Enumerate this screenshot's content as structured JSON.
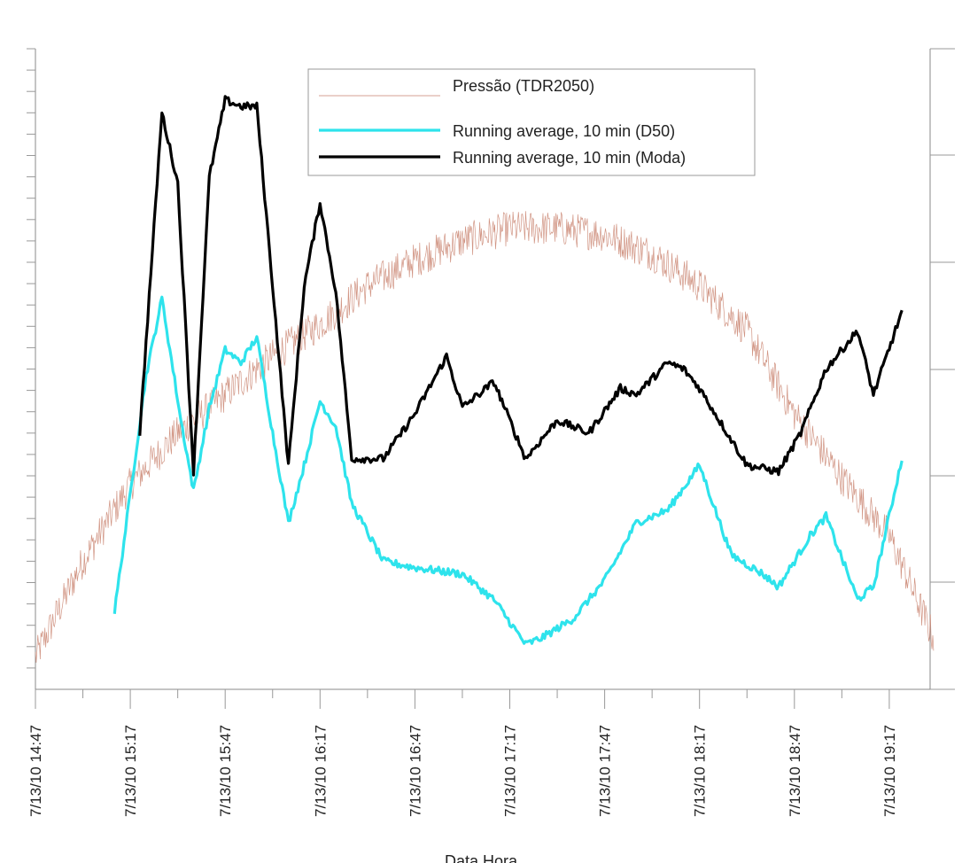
{
  "chart_data": {
    "type": "line",
    "xlabel": "Data Hora",
    "xlim": [
      "7/13/10 14:47",
      "7/13/10 19:31"
    ],
    "x_ticks": [
      "7/13/10 14:47",
      "7/13/10 15:17",
      "7/13/10 15:47",
      "7/13/10 16:17",
      "7/13/10 16:47",
      "7/13/10 17:17",
      "7/13/10 17:47",
      "7/13/10 18:17",
      "7/13/10 18:47",
      "7/13/10 19:17"
    ],
    "left_axis_labels": "not visible (cropped)",
    "right_axis_labels": "not visible (cropped)",
    "grid": false,
    "legend_position": "top-center",
    "series": [
      {
        "name": "Pressão (TDR2050)",
        "color": "#c9826f",
        "style": "noisy thin line",
        "x": [
          "14:47",
          "15:02",
          "15:17",
          "15:32",
          "15:47",
          "16:02",
          "16:17",
          "16:32",
          "16:47",
          "17:02",
          "17:17",
          "17:32",
          "17:47",
          "18:02",
          "18:17",
          "18:32",
          "18:47",
          "19:02",
          "19:17",
          "19:31"
        ],
        "values": [
          0.05,
          0.2,
          0.32,
          0.4,
          0.46,
          0.52,
          0.57,
          0.63,
          0.67,
          0.7,
          0.72,
          0.72,
          0.71,
          0.68,
          0.63,
          0.56,
          0.43,
          0.33,
          0.24,
          0.08
        ]
      },
      {
        "name": "Running average, 10 min (D50)",
        "color": "#2ee3ec",
        "x": [
          "15:12",
          "15:22",
          "15:27",
          "15:33",
          "15:37",
          "15:42",
          "15:47",
          "15:52",
          "15:57",
          "16:02",
          "16:07",
          "16:12",
          "16:17",
          "16:22",
          "16:27",
          "16:37",
          "16:47",
          "17:02",
          "17:12",
          "17:22",
          "17:27",
          "17:37",
          "17:47",
          "17:57",
          "18:07",
          "18:17",
          "18:27",
          "18:37",
          "18:42",
          "18:52",
          "18:57",
          "19:07",
          "19:12",
          "19:21"
        ],
        "values": [
          0.12,
          0.49,
          0.61,
          0.42,
          0.31,
          0.44,
          0.53,
          0.51,
          0.55,
          0.4,
          0.26,
          0.35,
          0.45,
          0.41,
          0.29,
          0.2,
          0.19,
          0.18,
          0.14,
          0.07,
          0.08,
          0.11,
          0.17,
          0.26,
          0.28,
          0.35,
          0.21,
          0.18,
          0.16,
          0.24,
          0.27,
          0.14,
          0.16,
          0.36
        ]
      },
      {
        "name": "Running average, 10 min (Moda)",
        "color": "#000000",
        "x": [
          "15:20",
          "15:27",
          "15:32",
          "15:37",
          "15:42",
          "15:47",
          "15:52",
          "15:57",
          "16:02",
          "16:07",
          "16:12",
          "16:17",
          "16:22",
          "16:27",
          "16:37",
          "16:47",
          "16:57",
          "17:02",
          "17:12",
          "17:22",
          "17:32",
          "17:42",
          "17:52",
          "17:57",
          "18:07",
          "18:12",
          "18:17",
          "18:32",
          "18:42",
          "18:49",
          "18:57",
          "19:07",
          "19:12",
          "19:21"
        ],
        "values": [
          0.4,
          0.9,
          0.79,
          0.34,
          0.8,
          0.92,
          0.91,
          0.91,
          0.63,
          0.35,
          0.63,
          0.76,
          0.62,
          0.36,
          0.36,
          0.43,
          0.52,
          0.44,
          0.48,
          0.36,
          0.42,
          0.4,
          0.47,
          0.46,
          0.51,
          0.5,
          0.47,
          0.35,
          0.34,
          0.4,
          0.5,
          0.56,
          0.46,
          0.59
        ]
      }
    ]
  }
}
